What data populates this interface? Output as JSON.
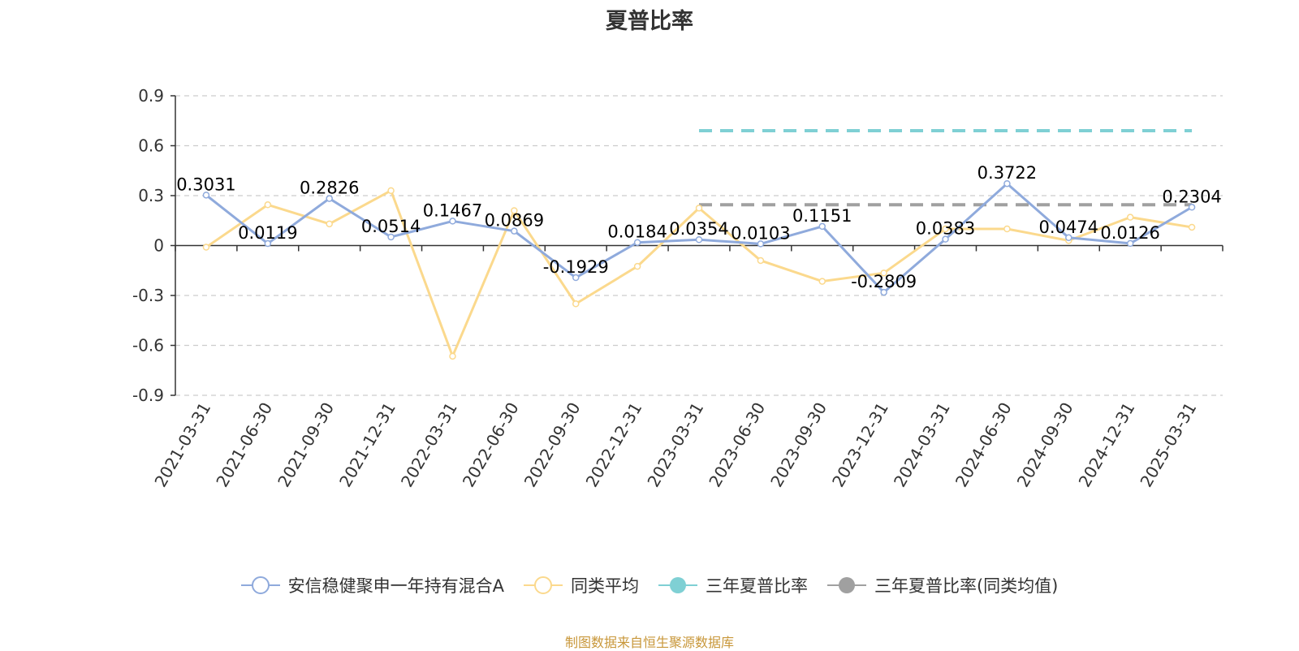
{
  "title": "夏普比率",
  "source_text": "制图数据来自恒生聚源数据库",
  "colors": {
    "fund": "#8faadc",
    "peer": "#fbd98d",
    "three_year": "#7fd0d4",
    "three_year_peer": "#a0a0a0",
    "axis": "#333333",
    "grid": "#cccccc",
    "source": "#c8973a"
  },
  "chart_data": {
    "type": "line",
    "title": "夏普比率",
    "xlabel": "",
    "ylabel": "",
    "ylim": [
      -0.9,
      0.9
    ],
    "yticks": [
      "0.9",
      "0.6",
      "0.3",
      "0",
      "-0.3",
      "-0.6",
      "-0.9"
    ],
    "ytick_values": [
      0.9,
      0.6,
      0.3,
      0,
      -0.3,
      -0.6,
      -0.9
    ],
    "grid": true,
    "legend_position": "bottom",
    "categories": [
      "2021-03-31",
      "2021-06-30",
      "2021-09-30",
      "2021-12-31",
      "2022-03-31",
      "2022-06-30",
      "2022-09-30",
      "2022-12-31",
      "2023-03-31",
      "2023-06-30",
      "2023-09-30",
      "2023-12-31",
      "2024-03-31",
      "2024-06-30",
      "2024-09-30",
      "2024-12-31",
      "2025-03-31"
    ],
    "series": [
      {
        "name": "安信稳健聚申一年持有混合A",
        "values": [
          0.3031,
          0.0119,
          0.2826,
          0.0514,
          0.1467,
          0.0869,
          -0.1929,
          0.0184,
          0.0354,
          0.0103,
          0.1151,
          -0.2809,
          0.0383,
          0.3722,
          0.0474,
          0.0126,
          0.2304
        ],
        "labels": [
          "0.3031",
          "0.0119",
          "0.2826",
          "0.0514",
          "0.1467",
          "0.0869",
          "-0.1929",
          "0.0184",
          "0.0354",
          "0.0103",
          "0.1151",
          "-0.2809",
          "0.0383",
          "0.3722",
          "0.0474",
          "0.0126",
          "0.2304"
        ]
      },
      {
        "name": "同类平均",
        "values": [
          -0.01,
          0.245,
          0.13,
          0.33,
          -0.665,
          0.21,
          -0.35,
          -0.125,
          0.225,
          -0.09,
          -0.215,
          -0.165,
          0.1,
          0.1,
          0.03,
          0.17,
          0.11
        ]
      }
    ],
    "reference_lines": [
      {
        "name": "三年夏普比率",
        "value": 0.69,
        "start_category": "2023-03-31",
        "end_category": "2025-03-31"
      },
      {
        "name": "三年夏普比率(同类均值)",
        "value": 0.245,
        "start_category": "2023-03-31",
        "end_category": "2025-03-31"
      }
    ],
    "legend": [
      "安信稳健聚申一年持有混合A",
      "同类平均",
      "三年夏普比率",
      "三年夏普比率(同类均值)"
    ]
  }
}
